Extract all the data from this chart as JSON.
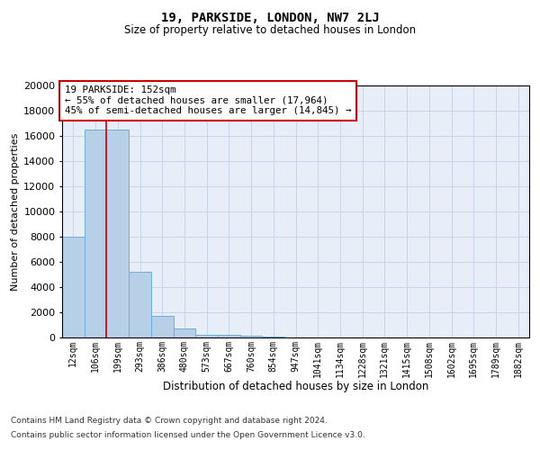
{
  "title1": "19, PARKSIDE, LONDON, NW7 2LJ",
  "title2": "Size of property relative to detached houses in London",
  "xlabel": "Distribution of detached houses by size in London",
  "ylabel": "Number of detached properties",
  "categories": [
    "12sqm",
    "106sqm",
    "199sqm",
    "293sqm",
    "386sqm",
    "480sqm",
    "573sqm",
    "667sqm",
    "760sqm",
    "854sqm",
    "947sqm",
    "1041sqm",
    "1134sqm",
    "1228sqm",
    "1321sqm",
    "1415sqm",
    "1508sqm",
    "1602sqm",
    "1695sqm",
    "1789sqm",
    "1882sqm"
  ],
  "values": [
    8000,
    16500,
    16500,
    5200,
    1700,
    750,
    250,
    200,
    150,
    100,
    0,
    0,
    0,
    0,
    0,
    0,
    0,
    0,
    0,
    0,
    0
  ],
  "bar_color": "#b8cfe8",
  "bar_edge_color": "#6baed6",
  "vline_x": 1.5,
  "vline_color": "#cc0000",
  "annotation_text": "19 PARKSIDE: 152sqm\n← 55% of detached houses are smaller (17,964)\n45% of semi-detached houses are larger (14,845) →",
  "annotation_box_color": "#ffffff",
  "annotation_box_edge": "#cc0000",
  "grid_color": "#c8d4e8",
  "bg_color": "#e8eef8",
  "ylim_max": 20000,
  "yticks": [
    0,
    2000,
    4000,
    6000,
    8000,
    10000,
    12000,
    14000,
    16000,
    18000,
    20000
  ],
  "footer1": "Contains HM Land Registry data © Crown copyright and database right 2024.",
  "footer2": "Contains public sector information licensed under the Open Government Licence v3.0."
}
